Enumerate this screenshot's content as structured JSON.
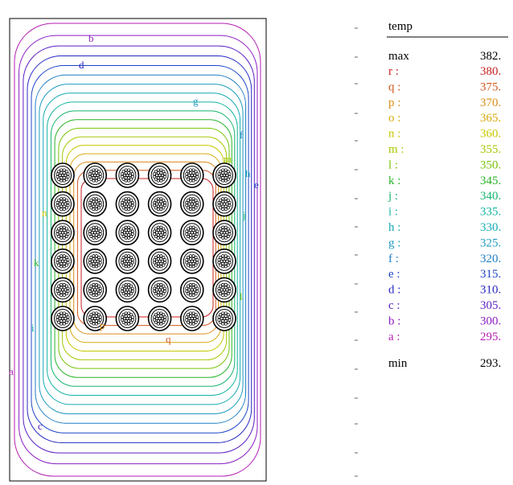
{
  "legend": {
    "title": "temp",
    "max": {
      "label": "max",
      "value": "382."
    },
    "min": {
      "label": "min",
      "value": "293."
    },
    "levels": [
      {
        "label": "r :",
        "value": "380.",
        "color": "#c81e1e"
      },
      {
        "label": "q :",
        "value": "375.",
        "color": "#d2581e"
      },
      {
        "label": "p :",
        "value": "370.",
        "color": "#dc8c14"
      },
      {
        "label": "o :",
        "value": "365.",
        "color": "#d6aa0a"
      },
      {
        "label": "n :",
        "value": "360.",
        "color": "#c8c800"
      },
      {
        "label": "m :",
        "value": "355.",
        "color": "#a5c800"
      },
      {
        "label": "l :",
        "value": "350.",
        "color": "#78c30a"
      },
      {
        "label": "k :",
        "value": "345.",
        "color": "#28b428"
      },
      {
        "label": "j :",
        "value": "340.",
        "color": "#14b46e"
      },
      {
        "label": "i :",
        "value": "335.",
        "color": "#14b4a0"
      },
      {
        "label": "h :",
        "value": "330.",
        "color": "#14aab4"
      },
      {
        "label": "g :",
        "value": "325.",
        "color": "#1e9bbe"
      },
      {
        "label": "f :",
        "value": "320.",
        "color": "#1e7dc3"
      },
      {
        "label": "e :",
        "value": "315.",
        "color": "#1e46c8"
      },
      {
        "label": "d :",
        "value": "310.",
        "color": "#2828c3"
      },
      {
        "label": "c :",
        "value": "305.",
        "color": "#5a1ec3"
      },
      {
        "label": "b :",
        "value": "300.",
        "color": "#8c1ec3"
      },
      {
        "label": "a :",
        "value": "295.",
        "color": "#b41eb4"
      }
    ]
  },
  "contour_labels": [
    "a",
    "b",
    "c",
    "d",
    "e",
    "f",
    "g",
    "h",
    "i",
    "j",
    "k",
    "l",
    "m",
    "n",
    "p",
    "q"
  ],
  "conductor_grid": {
    "rows": 6,
    "cols": 6
  }
}
